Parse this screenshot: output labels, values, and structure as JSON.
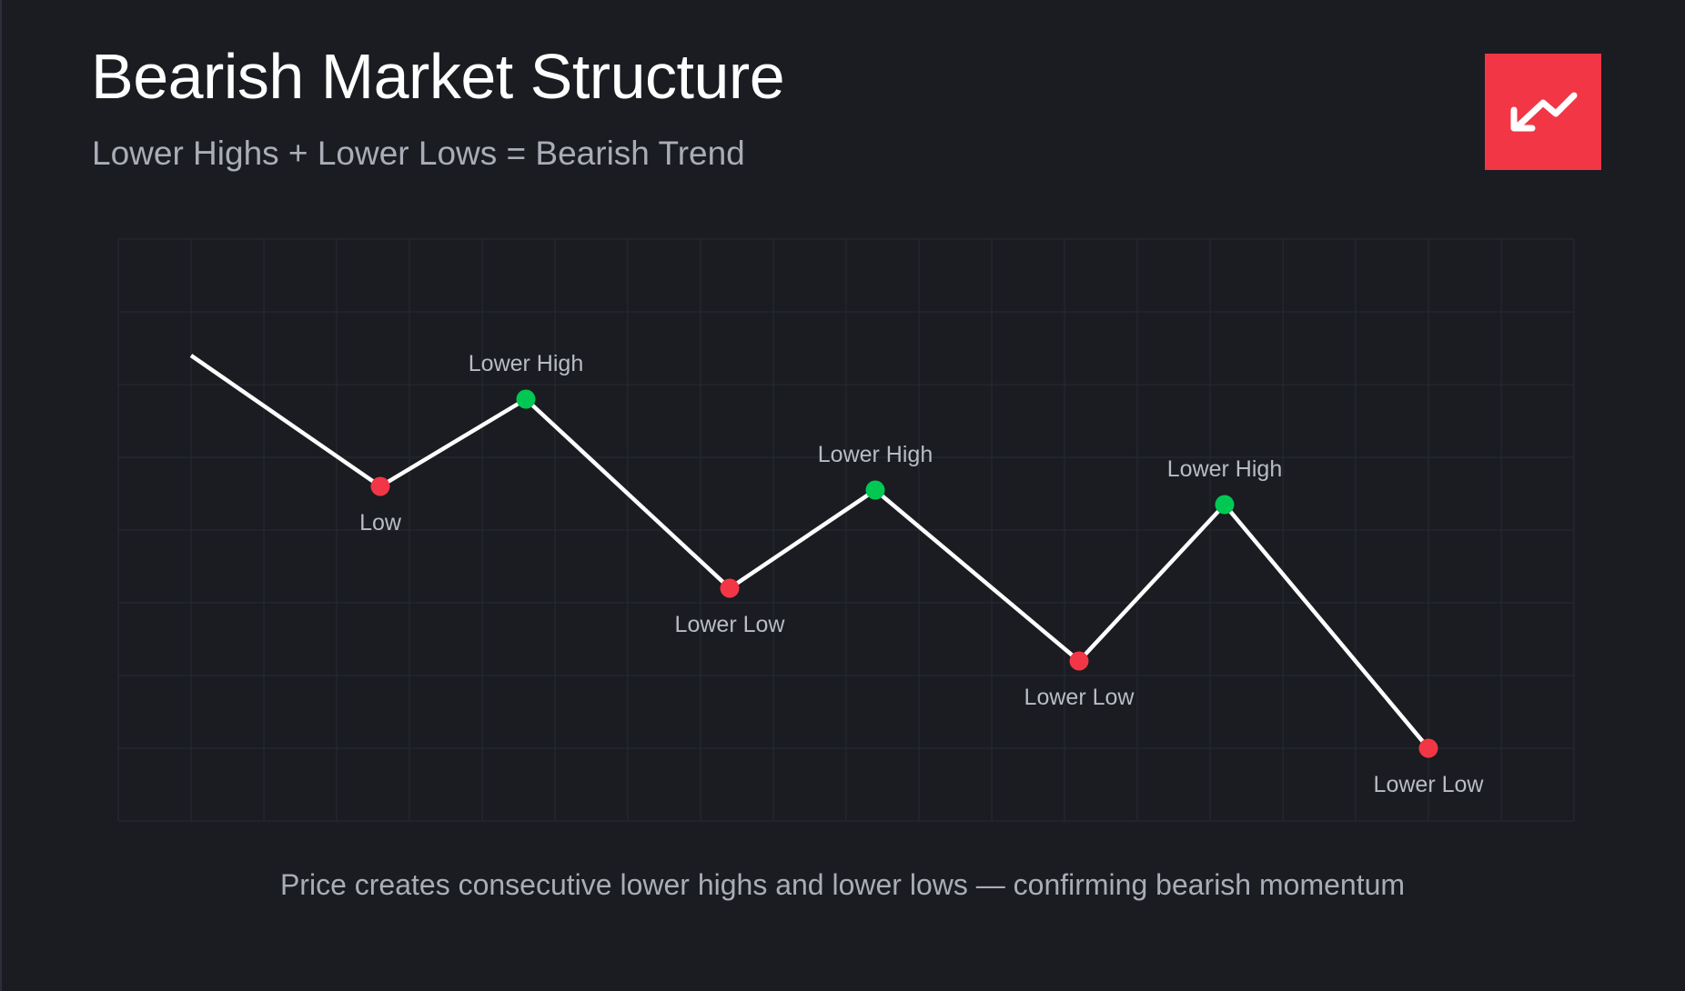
{
  "header": {
    "title": "Bearish Market Structure",
    "subtitle": "Lower Highs + Lower Lows = Bearish Trend",
    "badge_icon": "trending-down-icon"
  },
  "footer": {
    "caption": "Price creates consecutive lower highs and lower lows — confirming bearish momentum"
  },
  "colors": {
    "background": "#1a1c21",
    "grid": "#272b33",
    "line": "#ffffff",
    "high_marker": "#00c853",
    "low_marker": "#f23645",
    "badge": "#f23645"
  },
  "chart_data": {
    "type": "line",
    "title": "",
    "xlabel": "",
    "ylabel": "",
    "grid": true,
    "xlim": [
      0,
      20
    ],
    "ylim": [
      0,
      8
    ],
    "points": [
      {
        "x": 1,
        "y": 6.4,
        "kind": "start",
        "label": ""
      },
      {
        "x": 3.6,
        "y": 4.6,
        "kind": "low",
        "label": "Low"
      },
      {
        "x": 5.6,
        "y": 5.8,
        "kind": "high",
        "label": "Lower High"
      },
      {
        "x": 8.4,
        "y": 3.2,
        "kind": "low",
        "label": "Lower Low"
      },
      {
        "x": 10.4,
        "y": 4.55,
        "kind": "high",
        "label": "Lower High"
      },
      {
        "x": 13.2,
        "y": 2.2,
        "kind": "low",
        "label": "Lower Low"
      },
      {
        "x": 15.2,
        "y": 4.35,
        "kind": "high",
        "label": "Lower High"
      },
      {
        "x": 18,
        "y": 1.0,
        "kind": "low",
        "label": "Lower Low"
      }
    ]
  }
}
